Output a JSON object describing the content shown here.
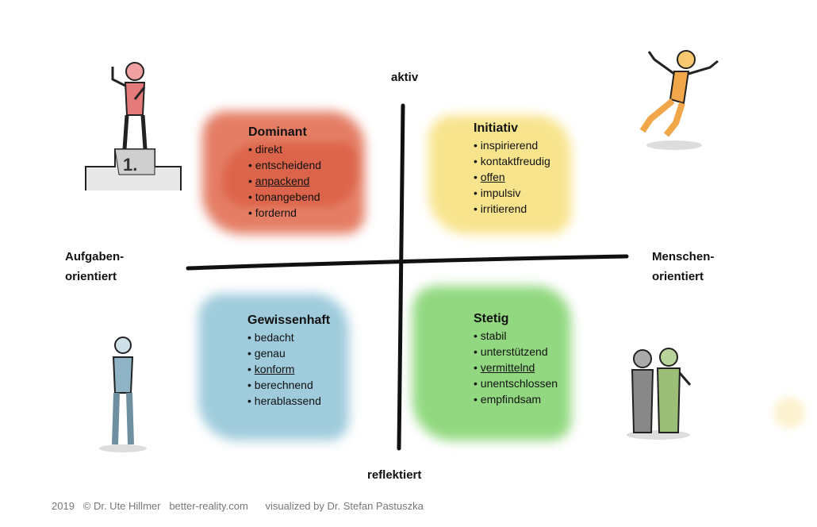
{
  "axes": {
    "top": "aktiv",
    "bottom": "reflektiert",
    "left": [
      "Aufgaben-",
      "orientiert"
    ],
    "right": [
      "Menschen-",
      "orientiert"
    ]
  },
  "quadrants": [
    {
      "title": "Dominant",
      "color": "#e0674a",
      "items": [
        "direkt",
        "entscheidend",
        "anpackend",
        "tonangebend",
        "fordernd"
      ],
      "underlined": "anpackend"
    },
    {
      "title": "Initiativ",
      "color": "#f7e07a",
      "items": [
        "inspirierend",
        "kontaktfreudig",
        "offen",
        "impulsiv",
        "irritierend"
      ],
      "underlined": "offen"
    },
    {
      "title": "Gewissenhaft",
      "color": "#8fc3d6",
      "items": [
        "bedacht",
        "genau",
        "konform",
        "berechnend",
        "herablassend"
      ],
      "underlined": "konform"
    },
    {
      "title": "Stetig",
      "color": "#7fd26a",
      "items": [
        "stabil",
        "unterstützend",
        "vermittelnd",
        "unentschlossen",
        "empfindsam"
      ],
      "underlined": "vermittelnd"
    }
  ],
  "podium_label": "1.",
  "footer": {
    "year": "2019",
    "copyright": "© Dr. Ute Hillmer",
    "site": "better-reality.com",
    "credit": "visualized by Dr. Stefan Pastuszka"
  }
}
